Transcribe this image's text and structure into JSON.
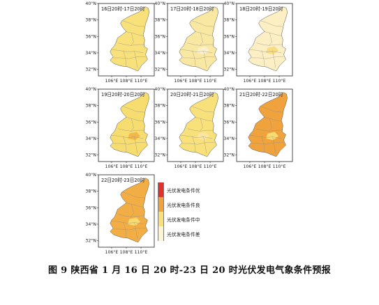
{
  "axes": {
    "y_ticks": [
      "40°N",
      "38°N",
      "36°N",
      "34°N",
      "32°N"
    ],
    "x_ticks": [
      "106°E",
      "108°E",
      "110°E"
    ]
  },
  "panels": [
    {
      "title": "16日20时-17日20时",
      "fill": "#f8e07a",
      "patch": "#f8e07a"
    },
    {
      "title": "17日20时-18日20时",
      "fill": "#f9e8a2",
      "patch": "#fcf1cc"
    },
    {
      "title": "18日20时-19日20时",
      "fill": "#fcefc4",
      "patch": "#f7dd80"
    },
    {
      "title": "19日20时-20日20时",
      "fill": "#f7dc70",
      "patch": "#f2b84a"
    },
    {
      "title": "20日20时-21日20时",
      "fill": "#f8e07a",
      "patch": "#fae6a0"
    },
    {
      "title": "21日20时-22日20时",
      "fill": "#f0a33c",
      "patch": "#f8db70"
    },
    {
      "title": "22日20时-23日20时",
      "fill": "#f2ae45",
      "patch": "#f8db70"
    }
  ],
  "legend": [
    {
      "label": "光伏发电条件优",
      "color": "#e3302a"
    },
    {
      "label": "光伏发电条件良",
      "color": "#f0a33c"
    },
    {
      "label": "光伏发电条件中",
      "color": "#f8e07a"
    },
    {
      "label": "光伏发电条件差",
      "color": "#fdf4d2"
    }
  ],
  "caption": "图 9   陕西省 1 月 16 日 20 时-23 日 20 时光伏发电气象条件预报"
}
